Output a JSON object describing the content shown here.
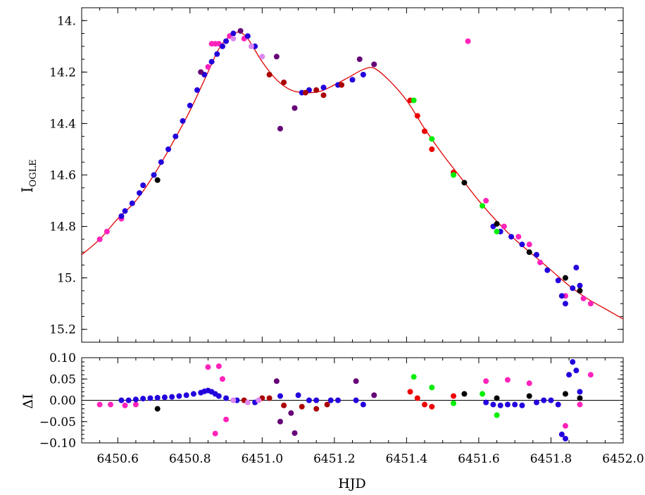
{
  "chart_data": [
    {
      "type": "scatter",
      "panel": "top",
      "title": "",
      "xlabel": "",
      "ylabel": "I",
      "ylabel_subscript": "OGLE",
      "xlim": [
        6450.5,
        6452.0
      ],
      "ylim": [
        15.25,
        13.95
      ],
      "y_inverted": true,
      "grid": false,
      "ytick_labels": [
        "14.",
        "14.2",
        "14.4",
        "14.6",
        "14.8",
        "15.",
        "15.2"
      ],
      "ytick_values": [
        14.0,
        14.2,
        14.4,
        14.6,
        14.8,
        15.0,
        15.2
      ],
      "model_curve": {
        "name": "",
        "color": "#e00000",
        "x": [
          6450.5,
          6450.55,
          6450.6,
          6450.65,
          6450.7,
          6450.75,
          6450.8,
          6450.85,
          6450.88,
          6450.91,
          6450.935,
          6450.96,
          6451.0,
          6451.04,
          6451.08,
          6451.12,
          6451.16,
          6451.2,
          6451.24,
          6451.28,
          6451.31,
          6451.35,
          6451.4,
          6451.45,
          6451.5,
          6451.55,
          6451.6,
          6451.65,
          6451.7,
          6451.75,
          6451.8,
          6451.85,
          6451.9,
          6451.95,
          6452.0
        ],
        "y": [
          14.91,
          14.85,
          14.77,
          14.7,
          14.6,
          14.48,
          14.35,
          14.2,
          14.11,
          14.06,
          14.045,
          14.07,
          14.16,
          14.23,
          14.27,
          14.28,
          14.275,
          14.25,
          14.22,
          14.19,
          14.185,
          14.23,
          14.31,
          14.42,
          14.52,
          14.61,
          14.7,
          14.78,
          14.85,
          14.91,
          14.97,
          15.03,
          15.08,
          15.12,
          15.16
        ]
      },
      "series": [
        {
          "color": "#ff22bb",
          "x": [
            6450.55,
            6450.57,
            6450.61,
            6450.85,
            6450.86,
            6450.87,
            6450.88,
            6450.89,
            6450.91,
            6450.95,
            6451.57,
            6451.62,
            6451.67,
            6451.71,
            6451.74,
            6451.77,
            6451.84,
            6451.89,
            6451.91
          ],
          "y": [
            14.85,
            14.82,
            14.77,
            14.18,
            14.09,
            14.09,
            14.09,
            14.1,
            14.06,
            14.07,
            14.08,
            14.7,
            14.8,
            14.84,
            14.87,
            14.94,
            15.07,
            15.08,
            15.1
          ]
        },
        {
          "color": "#2200dd",
          "x": [
            6450.61,
            6450.62,
            6450.64,
            6450.66,
            6450.67,
            6450.7,
            6450.72,
            6450.74,
            6450.76,
            6450.78,
            6450.8,
            6450.82,
            6450.84,
            6450.86,
            6450.875,
            6450.89,
            6450.9,
            6450.92,
            6450.96,
            6450.98,
            6451.11,
            6451.13,
            6451.17,
            6451.21,
            6451.25,
            6451.28,
            6451.64,
            6451.66,
            6451.69,
            6451.72,
            6451.76,
            6451.79,
            6451.82,
            6451.83,
            6451.84,
            6451.86,
            6451.87,
            6451.88
          ],
          "y": [
            14.76,
            14.74,
            14.71,
            14.67,
            14.64,
            14.6,
            14.55,
            14.5,
            14.45,
            14.39,
            14.33,
            14.27,
            14.21,
            14.16,
            14.13,
            14.1,
            14.08,
            14.05,
            14.06,
            14.1,
            14.28,
            14.27,
            14.26,
            14.25,
            14.23,
            14.21,
            14.8,
            14.82,
            14.84,
            14.87,
            14.91,
            14.97,
            15.01,
            15.07,
            15.1,
            15.04,
            14.96,
            15.03
          ]
        },
        {
          "color": "#660077",
          "x": [
            6450.83,
            6450.94,
            6451.04,
            6451.05,
            6451.09,
            6451.27,
            6451.31
          ],
          "y": [
            14.2,
            14.04,
            14.14,
            14.42,
            14.34,
            14.15,
            14.17
          ]
        },
        {
          "color": "#aa0000",
          "x": [
            6451.02,
            6451.06,
            6451.12,
            6451.15,
            6451.17,
            6451.22
          ],
          "y": [
            14.21,
            14.24,
            14.28,
            14.27,
            14.29,
            14.25
          ]
        },
        {
          "color": "#ee0000",
          "x": [
            6451.41,
            6451.43,
            6451.45,
            6451.47,
            6451.53
          ],
          "y": [
            14.31,
            14.37,
            14.43,
            14.5,
            14.59
          ]
        },
        {
          "color": "#00ee00",
          "x": [
            6451.42,
            6451.47,
            6451.53,
            6451.61,
            6451.65
          ],
          "y": [
            14.31,
            14.46,
            14.6,
            14.72,
            14.82
          ]
        },
        {
          "color": "#000000",
          "x": [
            6450.71,
            6451.56,
            6451.65,
            6451.74,
            6451.84,
            6451.88
          ],
          "y": [
            14.62,
            14.63,
            14.79,
            14.9,
            15.0,
            15.05
          ]
        },
        {
          "color": "#dd88ee",
          "x": [
            6450.92,
            6450.97,
            6451.0
          ],
          "y": [
            14.07,
            14.1,
            14.14
          ]
        }
      ]
    },
    {
      "type": "scatter",
      "panel": "bottom",
      "title": "",
      "xlabel": "HJD",
      "ylabel": "ΔI",
      "xlim": [
        6450.5,
        6452.0
      ],
      "ylim": [
        -0.1,
        0.1
      ],
      "grid": false,
      "zero_line": true,
      "xtick_labels": [
        "6450.6",
        "6450.8",
        "6451.0",
        "6451.2",
        "6451.4",
        "6451.6",
        "6451.8",
        "6452.0"
      ],
      "xtick_values": [
        6450.6,
        6450.8,
        6451.0,
        6451.2,
        6451.4,
        6451.6,
        6451.8,
        6452.0
      ],
      "ytick_labels": [
        "0.10",
        "0.05",
        "0.00",
        "−0.05",
        "−0.10"
      ],
      "ytick_values": [
        0.1,
        0.05,
        0.0,
        -0.05,
        -0.1
      ],
      "series": [
        {
          "color": "#ff22bb",
          "x": [
            6450.55,
            6450.58,
            6450.62,
            6450.65,
            6450.85,
            6450.87,
            6450.88,
            6450.89,
            6450.9,
            6451.62,
            6451.68,
            6451.74,
            6451.84,
            6451.88,
            6451.91
          ],
          "y": [
            -0.01,
            -0.01,
            -0.012,
            -0.01,
            0.078,
            -0.078,
            0.08,
            0.05,
            -0.045,
            0.045,
            0.048,
            0.04,
            -0.06,
            -0.01,
            0.06
          ]
        },
        {
          "color": "#2200dd",
          "x": [
            6450.61,
            6450.63,
            6450.65,
            6450.67,
            6450.69,
            6450.71,
            6450.73,
            6450.75,
            6450.77,
            6450.79,
            6450.81,
            6450.83,
            6450.84,
            6450.85,
            6450.86,
            6450.87,
            6450.88,
            6450.9,
            6450.93,
            6450.98,
            6451.05,
            6451.1,
            6451.13,
            6451.15,
            6451.19,
            6451.21,
            6451.26,
            6451.28,
            6451.62,
            6451.64,
            6451.66,
            6451.68,
            6451.7,
            6451.72,
            6451.76,
            6451.78,
            6451.8,
            6451.82,
            6451.83,
            6451.84,
            6451.85,
            6451.86,
            6451.87,
            6451.88
          ],
          "y": [
            0.0,
            0.0,
            0.002,
            0.004,
            0.005,
            0.006,
            0.007,
            0.008,
            0.01,
            0.012,
            0.015,
            0.018,
            0.021,
            0.023,
            0.02,
            0.015,
            0.01,
            0.005,
            0.0,
            -0.005,
            0.01,
            0.012,
            0.0,
            0.0,
            0.0,
            0.0,
            0.0,
            -0.01,
            -0.005,
            -0.01,
            -0.012,
            -0.01,
            -0.01,
            -0.012,
            -0.005,
            0.0,
            0.0,
            -0.01,
            -0.08,
            -0.09,
            0.06,
            0.09,
            0.07,
            0.02
          ]
        },
        {
          "color": "#660077",
          "x": [
            6451.04,
            6451.05,
            6451.08,
            6451.09,
            6451.26,
            6451.31
          ],
          "y": [
            0.045,
            -0.05,
            -0.03,
            -0.077,
            0.045,
            0.012
          ]
        },
        {
          "color": "#aa0000",
          "x": [
            6450.95,
            6451.0,
            6451.02,
            6451.06,
            6451.11,
            6451.15,
            6451.18
          ],
          "y": [
            0.0,
            0.005,
            0.005,
            -0.012,
            -0.015,
            -0.02,
            -0.01
          ]
        },
        {
          "color": "#ee0000",
          "x": [
            6451.41,
            6451.43,
            6451.45,
            6451.47,
            6451.53
          ],
          "y": [
            0.02,
            0.005,
            -0.01,
            -0.015,
            0.01
          ]
        },
        {
          "color": "#00ee00",
          "x": [
            6451.42,
            6451.47,
            6451.53,
            6451.61,
            6451.65
          ],
          "y": [
            0.055,
            0.03,
            -0.007,
            0.015,
            -0.035
          ]
        },
        {
          "color": "#000000",
          "x": [
            6450.71,
            6451.56,
            6451.65,
            6451.74,
            6451.84,
            6451.88
          ],
          "y": [
            -0.02,
            0.015,
            0.005,
            0.01,
            0.015,
            0.005
          ]
        },
        {
          "color": "#dd88ee",
          "x": [
            6450.92,
            6450.96,
            6450.99
          ],
          "y": [
            0.0,
            -0.005,
            0.0
          ]
        }
      ]
    }
  ]
}
